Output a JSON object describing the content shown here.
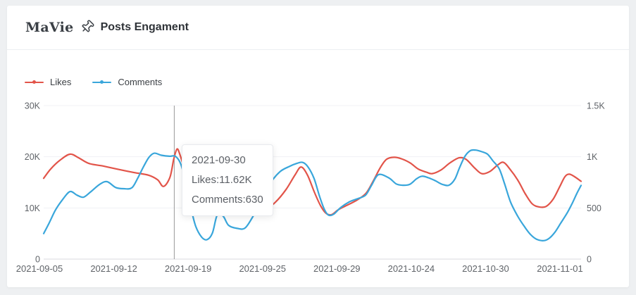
{
  "header": {
    "brand": "MaVie",
    "icon": "pushpin-icon",
    "title": "Posts Engament"
  },
  "colors": {
    "likes": "#e25449",
    "comments": "#39a6db",
    "axis_text": "#5f6368",
    "gridline": "#f0f1f4",
    "axis_line": "#d8dadf",
    "crosshair": "#999999",
    "card_bg": "#ffffff",
    "page_bg": "#eef0f2"
  },
  "legend": [
    {
      "label": "Likes",
      "color": "#e25449"
    },
    {
      "label": "Comments",
      "color": "#39a6db"
    }
  ],
  "chart_data": {
    "type": "line",
    "title": "Posts Engament",
    "x_axis": {
      "labels": [
        "2021-09-05",
        "2021-09-12",
        "2021-09-19",
        "2021-09-25",
        "2021-09-29",
        "2021-10-24",
        "2021-10-30",
        "2021-11-01"
      ]
    },
    "y_axis_left": {
      "name": "Likes",
      "min": 0,
      "max": 30000,
      "ticks_top_to_bottom": [
        "30K",
        "20K",
        "10K",
        "0"
      ]
    },
    "y_axis_right": {
      "name": "Comments",
      "min": 0,
      "max": 1500,
      "ticks_top_to_bottom": [
        "1.5K",
        "1K",
        "500",
        "0"
      ]
    },
    "grid": "horizontal-only",
    "legend_position": "top-left",
    "crosshair_x_frac": 0.243,
    "tooltip": {
      "date": "2021-09-30",
      "likes": "Likes:11.62K",
      "comments": "Comments:630"
    },
    "series": [
      {
        "name": "Likes",
        "axis": "left",
        "unit": "K",
        "axis_max": 30,
        "color": "#e25449",
        "points": [
          [
            0.0,
            15.8
          ],
          [
            0.013,
            17.6
          ],
          [
            0.03,
            19.3
          ],
          [
            0.049,
            20.5
          ],
          [
            0.065,
            19.8
          ],
          [
            0.084,
            18.7
          ],
          [
            0.11,
            18.2
          ],
          [
            0.136,
            17.6
          ],
          [
            0.169,
            16.9
          ],
          [
            0.195,
            16.4
          ],
          [
            0.212,
            15.5
          ],
          [
            0.223,
            14.2
          ],
          [
            0.235,
            16.0
          ],
          [
            0.242,
            19.5
          ],
          [
            0.248,
            21.5
          ],
          [
            0.253,
            20.6
          ],
          [
            0.261,
            17.9
          ],
          [
            0.271,
            15.0
          ],
          [
            0.284,
            12.9
          ],
          [
            0.303,
            11.2
          ],
          [
            0.325,
            10.4
          ],
          [
            0.351,
            9.9
          ],
          [
            0.377,
            10.2
          ],
          [
            0.399,
            10.1
          ],
          [
            0.416,
            10.0
          ],
          [
            0.432,
            11.2
          ],
          [
            0.451,
            13.6
          ],
          [
            0.468,
            16.5
          ],
          [
            0.479,
            18.0
          ],
          [
            0.491,
            16.4
          ],
          [
            0.504,
            13.0
          ],
          [
            0.516,
            10.3
          ],
          [
            0.526,
            8.9
          ],
          [
            0.536,
            8.7
          ],
          [
            0.549,
            9.7
          ],
          [
            0.568,
            10.7
          ],
          [
            0.584,
            11.6
          ],
          [
            0.6,
            12.9
          ],
          [
            0.613,
            15.2
          ],
          [
            0.626,
            17.8
          ],
          [
            0.638,
            19.5
          ],
          [
            0.652,
            19.9
          ],
          [
            0.666,
            19.6
          ],
          [
            0.682,
            18.8
          ],
          [
            0.697,
            17.6
          ],
          [
            0.712,
            17.0
          ],
          [
            0.723,
            16.7
          ],
          [
            0.739,
            17.4
          ],
          [
            0.756,
            18.8
          ],
          [
            0.773,
            19.8
          ],
          [
            0.786,
            19.5
          ],
          [
            0.801,
            17.9
          ],
          [
            0.815,
            16.7
          ],
          [
            0.83,
            17.1
          ],
          [
            0.845,
            18.4
          ],
          [
            0.856,
            18.9
          ],
          [
            0.869,
            17.4
          ],
          [
            0.883,
            15.3
          ],
          [
            0.896,
            12.8
          ],
          [
            0.909,
            10.8
          ],
          [
            0.922,
            10.2
          ],
          [
            0.935,
            10.3
          ],
          [
            0.948,
            11.7
          ],
          [
            0.96,
            14.1
          ],
          [
            0.97,
            16.1
          ],
          [
            0.978,
            16.6
          ],
          [
            0.988,
            16.1
          ],
          [
            1.0,
            15.2
          ]
        ]
      },
      {
        "name": "Comments",
        "axis": "right",
        "unit": "",
        "axis_max": 1500,
        "color": "#39a6db",
        "points": [
          [
            0.0,
            250
          ],
          [
            0.01,
            350
          ],
          [
            0.022,
            480
          ],
          [
            0.035,
            580
          ],
          [
            0.049,
            660
          ],
          [
            0.062,
            625
          ],
          [
            0.074,
            605
          ],
          [
            0.087,
            655
          ],
          [
            0.104,
            730
          ],
          [
            0.118,
            757
          ],
          [
            0.134,
            700
          ],
          [
            0.149,
            688
          ],
          [
            0.164,
            696
          ],
          [
            0.175,
            790
          ],
          [
            0.186,
            905
          ],
          [
            0.196,
            995
          ],
          [
            0.206,
            1035
          ],
          [
            0.219,
            1015
          ],
          [
            0.234,
            1005
          ],
          [
            0.245,
            1005
          ],
          [
            0.255,
            930
          ],
          [
            0.264,
            755
          ],
          [
            0.274,
            500
          ],
          [
            0.283,
            320
          ],
          [
            0.294,
            215
          ],
          [
            0.304,
            190
          ],
          [
            0.314,
            255
          ],
          [
            0.323,
            430
          ],
          [
            0.334,
            420
          ],
          [
            0.344,
            330
          ],
          [
            0.36,
            300
          ],
          [
            0.375,
            305
          ],
          [
            0.391,
            430
          ],
          [
            0.408,
            590
          ],
          [
            0.423,
            750
          ],
          [
            0.44,
            855
          ],
          [
            0.457,
            905
          ],
          [
            0.471,
            935
          ],
          [
            0.482,
            945
          ],
          [
            0.492,
            900
          ],
          [
            0.503,
            790
          ],
          [
            0.513,
            620
          ],
          [
            0.522,
            490
          ],
          [
            0.53,
            430
          ],
          [
            0.54,
            440
          ],
          [
            0.553,
            505
          ],
          [
            0.569,
            560
          ],
          [
            0.584,
            590
          ],
          [
            0.599,
            625
          ],
          [
            0.61,
            720
          ],
          [
            0.623,
            825
          ],
          [
            0.642,
            795
          ],
          [
            0.656,
            735
          ],
          [
            0.668,
            722
          ],
          [
            0.681,
            730
          ],
          [
            0.694,
            785
          ],
          [
            0.704,
            810
          ],
          [
            0.716,
            795
          ],
          [
            0.729,
            765
          ],
          [
            0.742,
            730
          ],
          [
            0.754,
            722
          ],
          [
            0.765,
            780
          ],
          [
            0.774,
            895
          ],
          [
            0.784,
            1005
          ],
          [
            0.794,
            1060
          ],
          [
            0.804,
            1065
          ],
          [
            0.815,
            1050
          ],
          [
            0.826,
            1025
          ],
          [
            0.836,
            960
          ],
          [
            0.848,
            880
          ],
          [
            0.858,
            730
          ],
          [
            0.869,
            555
          ],
          [
            0.882,
            420
          ],
          [
            0.895,
            315
          ],
          [
            0.906,
            240
          ],
          [
            0.917,
            195
          ],
          [
            0.93,
            180
          ],
          [
            0.94,
            200
          ],
          [
            0.951,
            260
          ],
          [
            0.962,
            350
          ],
          [
            0.974,
            450
          ],
          [
            0.984,
            550
          ],
          [
            0.992,
            640
          ],
          [
            1.0,
            720
          ]
        ]
      }
    ]
  }
}
